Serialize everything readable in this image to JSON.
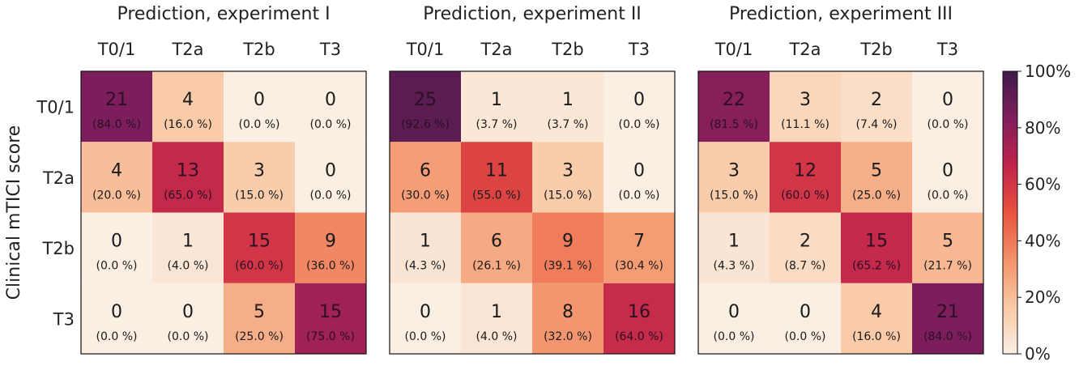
{
  "chart_data": {
    "type": "heatmap",
    "ylabel": "Clinical mTICI score",
    "color_scale": [
      "#fbefe4",
      "#f9c9a5",
      "#f3926a",
      "#e8523f",
      "#c0244b",
      "#7f1e5c",
      "#3e1a49"
    ],
    "colorbar": {
      "min": 0,
      "max": 100,
      "ticks": [
        "0%",
        "20%",
        "40%",
        "60%",
        "80%",
        "100%"
      ]
    },
    "row_labels": [
      "T0/1",
      "T2a",
      "T2b",
      "T3"
    ],
    "col_labels": [
      "T0/1",
      "T2a",
      "T2b",
      "T3"
    ],
    "panels": [
      {
        "title": "Prediction, experiment I",
        "counts": [
          [
            21,
            4,
            0,
            0
          ],
          [
            4,
            13,
            3,
            0
          ],
          [
            0,
            1,
            15,
            9
          ],
          [
            0,
            0,
            5,
            15
          ]
        ],
        "percents": [
          [
            "(84.0 %)",
            "(16.0 %)",
            "(0.0 %)",
            "(0.0 %)"
          ],
          [
            "(20.0 %)",
            "(65.0 %)",
            "(15.0 %)",
            "(0.0 %)"
          ],
          [
            "(0.0 %)",
            "(4.0 %)",
            "(60.0 %)",
            "(36.0 %)"
          ],
          [
            "(0.0 %)",
            "(0.0 %)",
            "(25.0 %)",
            "(75.0 %)"
          ]
        ],
        "values": [
          [
            84.0,
            16.0,
            0.0,
            0.0
          ],
          [
            20.0,
            65.0,
            15.0,
            0.0
          ],
          [
            0.0,
            4.0,
            60.0,
            36.0
          ],
          [
            0.0,
            0.0,
            25.0,
            75.0
          ]
        ]
      },
      {
        "title": "Prediction, experiment II",
        "counts": [
          [
            25,
            1,
            1,
            0
          ],
          [
            6,
            11,
            3,
            0
          ],
          [
            1,
            6,
            9,
            7
          ],
          [
            0,
            1,
            8,
            16
          ]
        ],
        "percents": [
          [
            "(92.6 %)",
            "(3.7 %)",
            "(3.7 %)",
            "(0.0 %)"
          ],
          [
            "(30.0 %)",
            "(55.0 %)",
            "(15.0 %)",
            "(0.0 %)"
          ],
          [
            "(4.3 %)",
            "(26.1 %)",
            "(39.1 %)",
            "(30.4 %)"
          ],
          [
            "(0.0 %)",
            "(4.0 %)",
            "(32.0 %)",
            "(64.0 %)"
          ]
        ],
        "values": [
          [
            92.6,
            3.7,
            3.7,
            0.0
          ],
          [
            30.0,
            55.0,
            15.0,
            0.0
          ],
          [
            4.3,
            26.1,
            39.1,
            30.4
          ],
          [
            0.0,
            4.0,
            32.0,
            64.0
          ]
        ]
      },
      {
        "title": "Prediction, experiment III",
        "counts": [
          [
            22,
            3,
            2,
            0
          ],
          [
            3,
            12,
            5,
            0
          ],
          [
            1,
            2,
            15,
            5
          ],
          [
            0,
            0,
            4,
            21
          ]
        ],
        "percents": [
          [
            "(81.5 %)",
            "(11.1 %)",
            "(7.4 %)",
            "(0.0 %)"
          ],
          [
            "(15.0 %)",
            "(60.0 %)",
            "(25.0 %)",
            "(0.0 %)"
          ],
          [
            "(4.3 %)",
            "(8.7 %)",
            "(65.2 %)",
            "(21.7 %)"
          ],
          [
            "(0.0 %)",
            "(0.0 %)",
            "(16.0 %)",
            "(84.0 %)"
          ]
        ],
        "values": [
          [
            81.5,
            11.1,
            7.4,
            0.0
          ],
          [
            15.0,
            60.0,
            25.0,
            0.0
          ],
          [
            4.3,
            8.7,
            65.2,
            21.7
          ],
          [
            0.0,
            0.0,
            16.0,
            84.0
          ]
        ]
      }
    ]
  }
}
